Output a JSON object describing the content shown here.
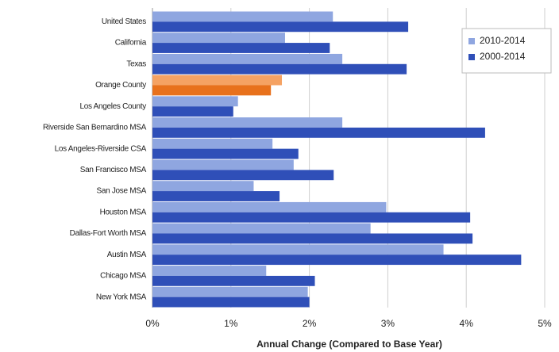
{
  "chart_data": {
    "type": "bar",
    "orientation": "horizontal",
    "x_label": "Annual Change (Compared to Base Year)",
    "categories": [
      "United States",
      "California",
      "Texas",
      "Orange County",
      "Los Angeles County",
      "Riverside San Bernardino MSA",
      "Los Angeles-Riverside CSA",
      "San Francisco MSA",
      "San Jose MSA",
      "Houston MSA",
      "Dallas-Fort Worth MSA",
      "Austin MSA",
      "Chicago MSA",
      "New York MSA"
    ],
    "series": [
      {
        "name": "2010-2014",
        "color": "#8fa6e0",
        "colors": [
          "#8fa6e0",
          "#8fa6e0",
          "#8fa6e0",
          "#f5a263",
          "#8fa6e0",
          "#8fa6e0",
          "#8fa6e0",
          "#8fa6e0",
          "#8fa6e0",
          "#8fa6e0",
          "#8fa6e0",
          "#8fa6e0",
          "#8fa6e0",
          "#8fa6e0"
        ],
        "values": [
          2.3,
          1.69,
          2.42,
          1.65,
          1.09,
          2.42,
          1.53,
          1.8,
          1.29,
          2.98,
          2.78,
          3.71,
          1.45,
          1.98
        ]
      },
      {
        "name": "2000-2014",
        "color": "#2f4fb8",
        "colors": [
          "#2f4fb8",
          "#2f4fb8",
          "#2f4fb8",
          "#e8711c",
          "#2f4fb8",
          "#2f4fb8",
          "#2f4fb8",
          "#2f4fb8",
          "#2f4fb8",
          "#2f4fb8",
          "#2f4fb8",
          "#2f4fb8",
          "#2f4fb8",
          "#2f4fb8"
        ],
        "values": [
          3.26,
          2.26,
          3.24,
          1.51,
          1.03,
          4.24,
          1.86,
          2.31,
          1.62,
          4.05,
          4.08,
          4.7,
          2.07,
          2.0
        ]
      }
    ],
    "xlim": [
      0,
      5
    ],
    "xticks": [
      {
        "value": 0,
        "label": "0%"
      },
      {
        "value": 1,
        "label": "1%"
      },
      {
        "value": 2,
        "label": "2%"
      },
      {
        "value": 3,
        "label": "3%"
      },
      {
        "value": 4,
        "label": "4%"
      },
      {
        "value": 5,
        "label": "5%"
      }
    ],
    "grid": true,
    "legend": "upper right"
  }
}
